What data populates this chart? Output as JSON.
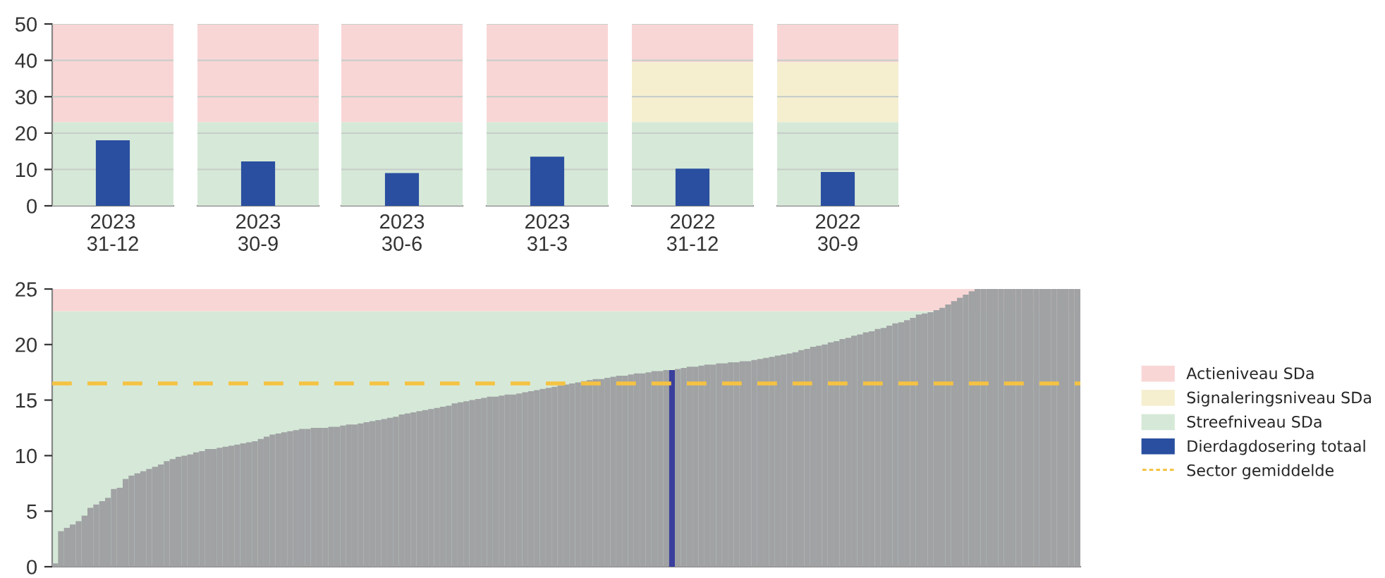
{
  "chart_data": [
    {
      "type": "bar",
      "categories": [
        "2023\n31-12"
      ],
      "series": [
        {
          "color": "#2a4fa0",
          "values": [
            18
          ]
        }
      ],
      "ylim": [
        0,
        50
      ],
      "yticks": [
        0,
        10,
        20,
        30,
        40,
        50
      ],
      "grid": "y",
      "bands": [
        {
          "axis": "y",
          "from": 0,
          "to": 23,
          "color": "#d6e9d8"
        },
        {
          "axis": "y",
          "from": 23,
          "to": 50,
          "color": "#f9d6d6"
        }
      ]
    },
    {
      "type": "bar",
      "categories": [
        "2023\n30-9"
      ],
      "series": [
        {
          "color": "#2a4fa0",
          "values": [
            12.2
          ]
        }
      ],
      "ylim": [
        0,
        50
      ],
      "yticks": [
        0,
        10,
        20,
        30,
        40,
        50
      ],
      "grid": "y",
      "tick_labels": "x",
      "bands": [
        {
          "axis": "y",
          "from": 0,
          "to": 23,
          "color": "#d6e9d8"
        },
        {
          "axis": "y",
          "from": 23,
          "to": 50,
          "color": "#f9d6d6"
        }
      ]
    },
    {
      "type": "bar",
      "categories": [
        "2023\n30-6"
      ],
      "series": [
        {
          "color": "#2a4fa0",
          "values": [
            9
          ]
        }
      ],
      "ylim": [
        0,
        50
      ],
      "yticks": [
        0,
        10,
        20,
        30,
        40,
        50
      ],
      "grid": "y",
      "tick_labels": "x",
      "bands": [
        {
          "axis": "y",
          "from": 0,
          "to": 23,
          "color": "#d6e9d8"
        },
        {
          "axis": "y",
          "from": 23,
          "to": 50,
          "color": "#f9d6d6"
        }
      ]
    },
    {
      "type": "bar",
      "categories": [
        "2023\n31-3"
      ],
      "series": [
        {
          "color": "#2a4fa0",
          "values": [
            13.5
          ]
        }
      ],
      "ylim": [
        0,
        50
      ],
      "yticks": [
        0,
        10,
        20,
        30,
        40,
        50
      ],
      "grid": "y",
      "tick_labels": "x",
      "bands": [
        {
          "axis": "y",
          "from": 0,
          "to": 23,
          "color": "#d6e9d8"
        },
        {
          "axis": "y",
          "from": 23,
          "to": 50,
          "color": "#f9d6d6"
        }
      ]
    },
    {
      "type": "bar",
      "categories": [
        "2022\n31-12"
      ],
      "series": [
        {
          "name": "Dierdagdosering totaal",
          "color": "#2a4fa0",
          "values": [
            10.2
          ]
        }
      ],
      "ylim": [
        0,
        50
      ],
      "yticks": [
        0,
        10,
        20,
        30,
        40,
        50
      ],
      "grid": "y",
      "tick_labels": "x",
      "legend": "right",
      "bands": [
        {
          "axis": "y",
          "from": 39.5,
          "to": 50,
          "color": "#f9d6d6",
          "label": "Actieniveau SDa"
        },
        {
          "axis": "y",
          "from": 23,
          "to": 39.5,
          "color": "#f5efd0",
          "label": "Signaleringsniveau SDa"
        },
        {
          "axis": "y",
          "from": 0,
          "to": 23,
          "color": "#d6e9d8",
          "label": "Streefniveau SDa"
        }
      ]
    },
    {
      "type": "bar",
      "categories": [
        "2022\n30-9"
      ],
      "series": [
        {
          "color": "#2a4fa0",
          "values": [
            9.3
          ]
        }
      ],
      "ylim": [
        0,
        50
      ],
      "yticks": [
        0,
        10,
        20,
        30,
        40,
        50
      ],
      "grid": "y",
      "tick_labels": "x",
      "bands": [
        {
          "axis": "y",
          "from": 0,
          "to": 23,
          "color": "#d6e9d8"
        },
        {
          "axis": "y",
          "from": 23,
          "to": 39.5,
          "color": "#f5efd0"
        },
        {
          "axis": "y",
          "from": 39.5,
          "to": 50,
          "color": "#f9d6d6"
        }
      ]
    },
    {
      "type": "bar",
      "categories": [
        null,
        null,
        null,
        null,
        null,
        null,
        null,
        null,
        null,
        null,
        null,
        null,
        null,
        null,
        null,
        null,
        null,
        null,
        null,
        null,
        null,
        null,
        null,
        null,
        null,
        null,
        null,
        null,
        null,
        null,
        null,
        null,
        null,
        null,
        null,
        null,
        null,
        null,
        null,
        null,
        null,
        null,
        null,
        null,
        null,
        null,
        null,
        null,
        null,
        null,
        null,
        null,
        null,
        null,
        null,
        null,
        null,
        null,
        null,
        null,
        null,
        null,
        null,
        null,
        null,
        null,
        null,
        null,
        null,
        null,
        null,
        null,
        null,
        null,
        null,
        null,
        null,
        null,
        null,
        null,
        null,
        null,
        null,
        null,
        null,
        null,
        null,
        null,
        null,
        null,
        null,
        null,
        null,
        null,
        null,
        null,
        null,
        null,
        null,
        null,
        null,
        null,
        null,
        null,
        null,
        null,
        null,
        null,
        null,
        null,
        null,
        null,
        null,
        null,
        null,
        null,
        null,
        null,
        null,
        null,
        null,
        null,
        null,
        null,
        null,
        null,
        null,
        null,
        null,
        null,
        null,
        null,
        null,
        null,
        null,
        null,
        null,
        null,
        null,
        null,
        null,
        null,
        null,
        null,
        null,
        null,
        null,
        null,
        null,
        null,
        null,
        null,
        null,
        null,
        null,
        null,
        null,
        null,
        null,
        null,
        null,
        null,
        null,
        null,
        null,
        null,
        null,
        null,
        null,
        null,
        null,
        null,
        null,
        null,
        null
      ],
      "values": [
        0.3,
        3.2,
        3.5,
        3.8,
        4.1,
        4.6,
        5.3,
        5.6,
        5.9,
        6.2,
        7.0,
        7.1,
        7.9,
        8.2,
        8.4,
        8.6,
        8.8,
        9.0,
        9.2,
        9.5,
        9.7,
        9.9,
        10.0,
        10.1,
        10.3,
        10.4,
        10.6,
        10.6,
        10.7,
        10.8,
        10.9,
        11.0,
        11.1,
        11.2,
        11.3,
        11.5,
        11.7,
        11.9,
        12.0,
        12.1,
        12.2,
        12.3,
        12.4,
        12.4,
        12.5,
        12.5,
        12.5,
        12.6,
        12.6,
        12.7,
        12.8,
        12.8,
        12.9,
        13.0,
        13.1,
        13.2,
        13.3,
        13.4,
        13.5,
        13.7,
        13.8,
        13.9,
        14.0,
        14.1,
        14.2,
        14.3,
        14.4,
        14.5,
        14.7,
        14.8,
        14.9,
        15.0,
        15.1,
        15.2,
        15.3,
        15.3,
        15.4,
        15.5,
        15.5,
        15.6,
        15.7,
        15.8,
        15.9,
        16.0,
        16.1,
        16.2,
        16.3,
        16.4,
        16.5,
        16.6,
        16.7,
        16.8,
        16.9,
        16.9,
        17.0,
        17.1,
        17.2,
        17.2,
        17.3,
        17.4,
        17.4,
        17.5,
        17.6,
        17.6,
        17.7,
        17.7,
        17.8,
        17.9,
        18.0,
        18.0,
        18.1,
        18.2,
        18.2,
        18.3,
        18.3,
        18.4,
        18.4,
        18.5,
        18.5,
        18.6,
        18.7,
        18.8,
        18.9,
        19.0,
        19.1,
        19.2,
        19.3,
        19.5,
        19.6,
        19.8,
        19.9,
        20.0,
        20.2,
        20.3,
        20.5,
        20.6,
        20.8,
        20.9,
        21.1,
        21.2,
        21.4,
        21.5,
        21.7,
        21.9,
        22.0,
        22.2,
        22.4,
        22.7,
        22.8,
        22.9,
        23.1,
        23.3,
        23.6,
        23.9,
        24.2,
        24.5,
        24.8,
        25,
        25,
        25,
        25,
        25,
        25,
        25,
        25,
        25,
        25,
        25,
        25,
        25,
        25,
        25,
        25,
        25,
        25
      ],
      "colors": [
        "#a0a2a4",
        "#a0a2a4",
        "#a0a2a4",
        "#a0a2a4",
        "#a0a2a4",
        "#a0a2a4",
        "#a0a2a4",
        "#a0a2a4",
        "#a0a2a4",
        "#a0a2a4",
        "#a0a2a4",
        "#a0a2a4",
        "#a0a2a4",
        "#a0a2a4",
        "#a0a2a4",
        "#a0a2a4",
        "#a0a2a4",
        "#a0a2a4",
        "#a0a2a4",
        "#a0a2a4",
        "#a0a2a4",
        "#a0a2a4",
        "#a0a2a4",
        "#a0a2a4",
        "#a0a2a4",
        "#a0a2a4",
        "#a0a2a4",
        "#a0a2a4",
        "#a0a2a4",
        "#a0a2a4",
        "#a0a2a4",
        "#a0a2a4",
        "#a0a2a4",
        "#a0a2a4",
        "#a0a2a4",
        "#a0a2a4",
        "#a0a2a4",
        "#a0a2a4",
        "#a0a2a4",
        "#a0a2a4",
        "#a0a2a4",
        "#a0a2a4",
        "#a0a2a4",
        "#a0a2a4",
        "#a0a2a4",
        "#a0a2a4",
        "#a0a2a4",
        "#a0a2a4",
        "#a0a2a4",
        "#a0a2a4",
        "#a0a2a4",
        "#a0a2a4",
        "#a0a2a4",
        "#a0a2a4",
        "#a0a2a4",
        "#a0a2a4",
        "#a0a2a4",
        "#a0a2a4",
        "#a0a2a4",
        "#a0a2a4",
        "#a0a2a4",
        "#a0a2a4",
        "#a0a2a4",
        "#a0a2a4",
        "#a0a2a4",
        "#a0a2a4",
        "#a0a2a4",
        "#a0a2a4",
        "#a0a2a4",
        "#a0a2a4",
        "#a0a2a4",
        "#a0a2a4",
        "#a0a2a4",
        "#a0a2a4",
        "#a0a2a4",
        "#a0a2a4",
        "#a0a2a4",
        "#a0a2a4",
        "#a0a2a4",
        "#a0a2a4",
        "#a0a2a4",
        "#a0a2a4",
        "#a0a2a4",
        "#a0a2a4",
        "#a0a2a4",
        "#a0a2a4",
        "#a0a2a4",
        "#a0a2a4",
        "#a0a2a4",
        "#a0a2a4",
        "#a0a2a4",
        "#a0a2a4",
        "#a0a2a4",
        "#a0a2a4",
        "#a0a2a4",
        "#a0a2a4",
        "#a0a2a4",
        "#a0a2a4",
        "#a0a2a4",
        "#a0a2a4",
        "#a0a2a4",
        "#a0a2a4",
        "#a0a2a4",
        "#a0a2a4",
        "#a0a2a4",
        "#3a3f9c",
        "#a0a2a4",
        "#a0a2a4",
        "#a0a2a4",
        "#a0a2a4",
        "#a0a2a4",
        "#a0a2a4",
        "#a0a2a4",
        "#a0a2a4",
        "#a0a2a4",
        "#a0a2a4",
        "#a0a2a4",
        "#a0a2a4",
        "#a0a2a4",
        "#a0a2a4",
        "#a0a2a4",
        "#a0a2a4",
        "#a0a2a4",
        "#a0a2a4",
        "#a0a2a4",
        "#a0a2a4",
        "#a0a2a4",
        "#a0a2a4",
        "#a0a2a4",
        "#a0a2a4",
        "#a0a2a4",
        "#a0a2a4",
        "#a0a2a4",
        "#a0a2a4",
        "#a0a2a4",
        "#a0a2a4",
        "#a0a2a4",
        "#a0a2a4",
        "#a0a2a4",
        "#a0a2a4",
        "#a0a2a4",
        "#a0a2a4",
        "#a0a2a4",
        "#a0a2a4",
        "#a0a2a4",
        "#a0a2a4",
        "#a0a2a4",
        "#a0a2a4",
        "#a0a2a4",
        "#a0a2a4",
        "#a0a2a4",
        "#a0a2a4",
        "#a0a2a4",
        "#a0a2a4",
        "#a0a2a4",
        "#a0a2a4",
        "#a0a2a4",
        "#a0a2a4",
        "#a0a2a4",
        "#a0a2a4",
        "#a0a2a4",
        "#a0a2a4",
        "#a0a2a4",
        "#a0a2a4",
        "#a0a2a4",
        "#a0a2a4",
        "#a0a2a4",
        "#a0a2a4",
        "#a0a2a4",
        "#a0a2a4",
        "#a0a2a4",
        "#a0a2a4",
        "#a0a2a4",
        "#a0a2a4",
        "#a0a2a4"
      ],
      "ylim": [
        0,
        25
      ],
      "yticks": [
        0,
        5,
        10,
        15,
        20,
        25
      ],
      "tick_labels": "y",
      "legend": "right",
      "bands": [
        {
          "axis": "y",
          "from": 0,
          "to": 23,
          "color": "#d6e9d8"
        },
        {
          "axis": "y",
          "from": 23,
          "to": 25,
          "color": "#f9d6d6"
        }
      ],
      "ref_lines": [
        {
          "axis": "y",
          "value": 16.5,
          "label": "Sector gemiddelde",
          "color": "#f5c242",
          "line_style": "dashed"
        }
      ]
    }
  ]
}
